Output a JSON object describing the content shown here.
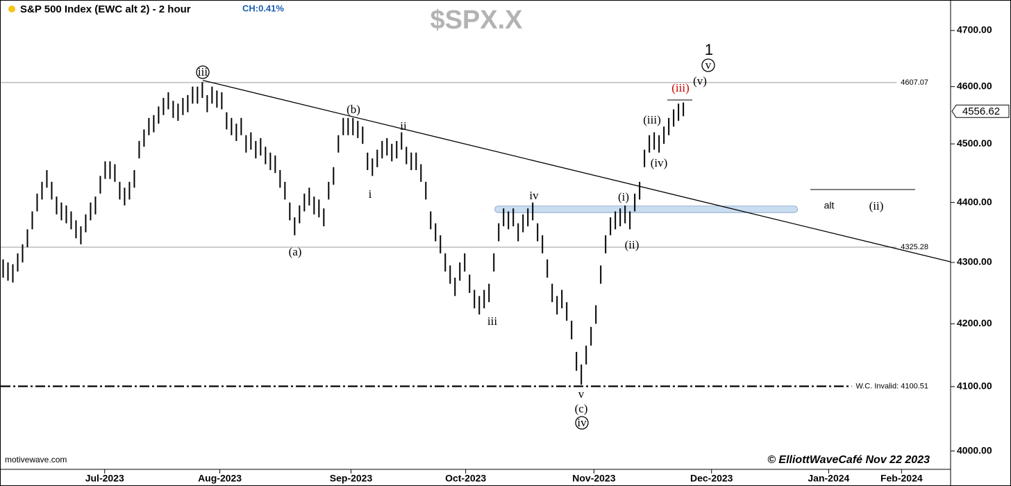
{
  "chart_data": {
    "type": "ohlc",
    "title": "S&P 500 Index (EWC alt 2) - 2 hour",
    "change": "CH:0.41%",
    "symbol": "$SPX.X",
    "color": "#000000",
    "log": true,
    "categories": [
      null,
      null,
      null,
      null,
      null,
      null,
      null,
      null,
      null,
      null,
      null,
      null,
      null,
      null,
      null,
      null,
      null,
      null,
      null,
      null,
      null,
      null,
      null,
      null,
      null,
      null,
      null,
      null,
      null,
      null,
      null,
      null,
      null,
      null,
      null,
      null,
      null,
      null,
      null,
      null,
      null,
      null,
      null,
      null,
      null,
      null,
      null,
      null,
      null,
      null,
      null,
      null,
      null,
      null,
      null,
      null,
      null,
      null,
      null,
      null,
      null,
      null,
      null,
      null,
      null,
      null,
      null,
      null,
      null,
      null,
      null,
      null,
      null,
      null,
      null,
      null,
      null,
      null,
      null,
      null,
      null,
      null,
      null,
      null,
      null,
      null,
      null,
      null,
      null,
      null,
      null,
      null,
      null,
      null,
      null,
      null,
      null,
      null,
      null,
      null,
      null,
      null,
      null,
      null,
      null,
      null,
      null,
      null,
      null,
      null,
      null,
      null,
      null,
      null,
      null,
      null,
      null,
      null,
      null,
      null,
      null,
      null,
      null,
      null,
      null,
      null,
      null,
      null,
      null,
      null,
      null,
      null,
      null,
      null,
      null,
      null,
      null,
      null,
      null,
      null,
      null
    ],
    "high": [
      4305,
      4300,
      4297,
      4315,
      4330,
      4355,
      4385,
      4415,
      4435,
      4455,
      4435,
      4410,
      4400,
      4395,
      4385,
      4370,
      4360,
      4380,
      4400,
      4410,
      4445,
      4470,
      4470,
      4465,
      4435,
      4425,
      4435,
      4455,
      4505,
      4525,
      4545,
      4550,
      4565,
      4580,
      4590,
      4575,
      4570,
      4580,
      4585,
      4600,
      4600,
      4608,
      4585,
      4600,
      4593,
      4590,
      4555,
      4545,
      4535,
      4545,
      4515,
      4520,
      4505,
      4510,
      4495,
      4485,
      4480,
      4455,
      4435,
      4400,
      4375,
      4395,
      4415,
      4425,
      4410,
      4405,
      4390,
      4435,
      4460,
      4515,
      4545,
      4545,
      4545,
      4540,
      4530,
      4485,
      4475,
      4490,
      4505,
      4510,
      4500,
      4505,
      4520,
      4495,
      4485,
      4485,
      4465,
      4435,
      4385,
      4365,
      4345,
      4315,
      4295,
      4275,
      4300,
      4315,
      4280,
      4255,
      4245,
      4255,
      4265,
      4315,
      4365,
      4390,
      4385,
      4390,
      4365,
      4380,
      4390,
      4400,
      4365,
      4345,
      4305,
      4265,
      4245,
      4255,
      4235,
      4205,
      4155,
      4135,
      4165,
      4195,
      4230,
      4295,
      4345,
      4375,
      4385,
      4390,
      4395,
      4385,
      4415,
      4435,
      4490,
      4515,
      4520,
      4515,
      4530,
      4545,
      4560,
      4570,
      4572
    ],
    "low": [
      4275,
      4270,
      4267,
      4285,
      4300,
      4325,
      4355,
      4385,
      4405,
      4425,
      4405,
      4380,
      4370,
      4365,
      4355,
      4340,
      4330,
      4350,
      4370,
      4380,
      4415,
      4440,
      4440,
      4435,
      4405,
      4395,
      4405,
      4425,
      4475,
      4495,
      4515,
      4520,
      4535,
      4550,
      4560,
      4545,
      4540,
      4550,
      4555,
      4570,
      4570,
      4580,
      4555,
      4570,
      4563,
      4560,
      4525,
      4515,
      4505,
      4515,
      4485,
      4490,
      4475,
      4480,
      4465,
      4455,
      4450,
      4425,
      4405,
      4370,
      4345,
      4365,
      4385,
      4395,
      4380,
      4375,
      4360,
      4405,
      4430,
      4485,
      4515,
      4515,
      4515,
      4510,
      4500,
      4455,
      4445,
      4460,
      4475,
      4480,
      4470,
      4475,
      4490,
      4465,
      4455,
      4455,
      4435,
      4405,
      4355,
      4335,
      4315,
      4285,
      4265,
      4245,
      4270,
      4285,
      4250,
      4225,
      4215,
      4225,
      4235,
      4285,
      4335,
      4360,
      4355,
      4360,
      4335,
      4350,
      4360,
      4370,
      4335,
      4315,
      4275,
      4235,
      4215,
      4225,
      4205,
      4175,
      4125,
      4103,
      4135,
      4165,
      4200,
      4265,
      4315,
      4345,
      4355,
      4360,
      4365,
      4355,
      4385,
      4405,
      4460,
      4485,
      4490,
      4485,
      4500,
      4515,
      4530,
      4540,
      4548
    ],
    "xlim": [
      -0.5,
      195
    ],
    "xticks": [
      {
        "value": 20.9,
        "label": "Jul-2023"
      },
      {
        "value": 44.6,
        "label": "Aug-2023"
      },
      {
        "value": 71.6,
        "label": "Sep-2023"
      },
      {
        "value": 95.2,
        "label": "Oct-2023"
      },
      {
        "value": 121.6,
        "label": "Nov-2023"
      },
      {
        "value": 145.8,
        "label": "Dec-2023"
      },
      {
        "value": 169.9,
        "label": "Jan-2024"
      },
      {
        "value": 184.9,
        "label": "Feb-2024"
      }
    ],
    "ylim": [
      3972,
      4754
    ],
    "yticks": [
      {
        "value": 4000,
        "label": "4000.00"
      },
      {
        "value": 4100,
        "label": "4100.00"
      },
      {
        "value": 4200,
        "label": "4200.00"
      },
      {
        "value": 4300,
        "label": "4300.00"
      },
      {
        "value": 4400,
        "label": "4400.00"
      },
      {
        "value": 4500,
        "label": "4500.00"
      },
      {
        "value": 4600,
        "label": "4600.00"
      },
      {
        "value": 4700,
        "label": "4700.00"
      }
    ],
    "levels": [
      {
        "value": 4607.07,
        "label": "4607.07",
        "style": "solid",
        "color": "#999999"
      },
      {
        "value": 4325.28,
        "label": "4325.28",
        "style": "solid",
        "color": "#999999"
      },
      {
        "value": 4100.51,
        "label": "W.C. Invalid: 4100.51",
        "style": "dashdot",
        "color": "#000000"
      }
    ],
    "last_price": {
      "value": 4556.62,
      "label": "4556.62"
    },
    "trendline": {
      "x": [
        41.1,
        195
      ],
      "y": [
        4611,
        4301
      ],
      "color": "#000000"
    },
    "zone": {
      "x": [
        101.2,
        163.5
      ],
      "y": [
        4383,
        4394
      ],
      "color": "#c9ddf0"
    },
    "wave_labels": [
      {
        "text": "iii",
        "circled": true,
        "color": "#000000"
      },
      {
        "text": "(b)",
        "circled": false,
        "color": "#000000"
      },
      {
        "text": "ii",
        "circled": false,
        "color": "#000000"
      },
      {
        "text": "i",
        "circled": false,
        "color": "#000000"
      },
      {
        "text": "(a)",
        "circled": false,
        "color": "#000000"
      },
      {
        "text": "iv",
        "circled": false,
        "color": "#000000"
      },
      {
        "text": "iii",
        "circled": false,
        "color": "#000000"
      },
      {
        "text": "v",
        "circled": false,
        "color": "#000000"
      },
      {
        "text": "(c)",
        "circled": false,
        "color": "#000000"
      },
      {
        "text": "iv",
        "circled": true,
        "color": "#000000"
      },
      {
        "text": "(i)",
        "circled": false,
        "color": "#000000"
      },
      {
        "text": "(ii)",
        "circled": false,
        "color": "#000000"
      },
      {
        "text": "(iii)",
        "circled": false,
        "color": "#000000"
      },
      {
        "text": "(iv)",
        "circled": false,
        "color": "#000000"
      },
      {
        "text": "(iii)",
        "circled": false,
        "color": "#d00000"
      },
      {
        "text": "(v)",
        "circled": false,
        "color": "#000000"
      },
      {
        "text": "v",
        "circled": true,
        "color": "#000000"
      },
      {
        "text": "1",
        "circled": false,
        "color": "#000000"
      },
      {
        "text": "alt",
        "circled": false,
        "color": "#000000"
      },
      {
        "text": "(ii)",
        "circled": false,
        "color": "#000000"
      }
    ],
    "source": "motivewave.com",
    "credit": "© ElliottWaveCafé Nov 22 2023"
  }
}
